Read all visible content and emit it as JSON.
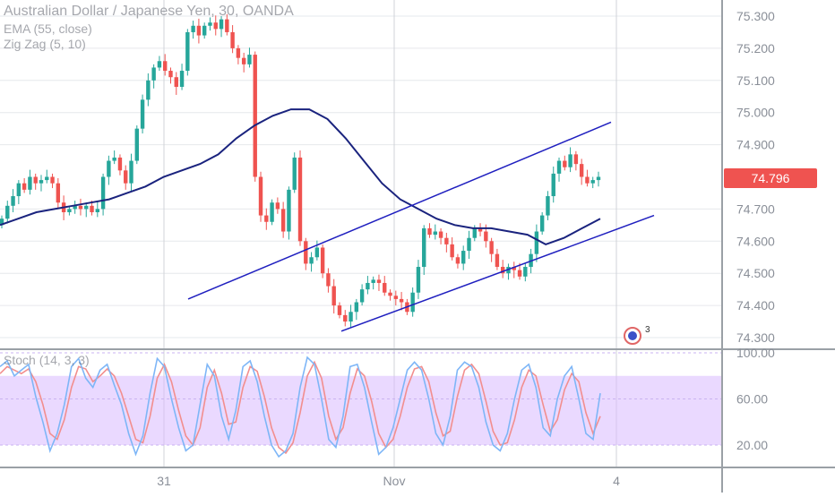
{
  "chart_data": [
    {
      "type": "candlestick",
      "title": "Australian Dollar / Japanese Yen, 30, OANDA",
      "indicators": [
        "EMA (55, close)",
        "Zig Zag (5, 10)"
      ],
      "x_ticks": [
        "31",
        "Nov",
        "4"
      ],
      "y_ticks": [
        "75.300",
        "75.200",
        "75.100",
        "75.000",
        "74.900",
        "74.796",
        "74.700",
        "74.600",
        "74.500",
        "74.400",
        "74.300"
      ],
      "ylim": [
        74.28,
        75.33
      ],
      "last_price": "74.796",
      "last_price_color": "#ef5350",
      "up_color": "#26a69a",
      "down_color": "#ef5350",
      "ema_color": "#1a237e",
      "channel_color": "#1f1fbf",
      "closes": [
        74.67,
        74.71,
        74.74,
        74.78,
        74.76,
        74.8,
        74.78,
        74.79,
        74.8,
        74.78,
        74.72,
        74.69,
        74.7,
        74.71,
        74.7,
        74.71,
        74.69,
        74.7,
        74.8,
        74.85,
        74.86,
        74.82,
        74.78,
        74.85,
        74.95,
        75.04,
        75.1,
        75.14,
        75.16,
        75.13,
        75.11,
        75.08,
        75.13,
        75.25,
        75.27,
        75.24,
        75.27,
        75.28,
        75.26,
        75.29,
        75.25,
        75.2,
        75.17,
        75.15,
        75.18,
        74.8,
        74.68,
        74.66,
        74.72,
        74.7,
        74.63,
        74.76,
        74.86,
        74.6,
        74.53,
        74.55,
        74.58,
        74.5,
        74.46,
        74.4,
        74.37,
        74.35,
        74.38,
        74.41,
        74.45,
        74.47,
        74.48,
        74.47,
        74.44,
        74.43,
        74.42,
        74.41,
        74.38,
        74.44,
        74.52,
        74.64,
        74.62,
        74.63,
        74.61,
        74.59,
        74.55,
        74.53,
        74.57,
        74.61,
        74.64,
        74.63,
        74.6,
        74.56,
        74.52,
        74.5,
        74.52,
        74.51,
        74.49,
        74.52,
        74.56,
        74.63,
        74.68,
        74.74,
        74.81,
        74.85,
        74.83,
        74.87,
        74.84,
        74.8,
        74.78,
        74.79,
        74.8
      ],
      "ema": [
        74.65,
        74.67,
        74.69,
        74.7,
        74.71,
        74.72,
        74.73,
        74.75,
        74.77,
        74.8,
        74.82,
        74.84,
        74.87,
        74.92,
        74.96,
        74.99,
        75.01,
        75.01,
        74.98,
        74.92,
        74.85,
        74.78,
        74.73,
        74.7,
        74.67,
        74.65,
        74.64,
        74.64,
        74.63,
        74.62,
        74.59,
        74.61,
        74.64,
        74.67
      ],
      "channel": {
        "upper": [
          [
            74.42,
            74.97
          ]
        ],
        "lower": [
          [
            74.32,
            74.68
          ]
        ]
      },
      "zigzag_label": "3"
    },
    {
      "type": "line",
      "title": "Stoch (14, 3, 3)",
      "y_ticks": [
        "100.00",
        "60.00",
        "20.00"
      ],
      "ylim": [
        0,
        100
      ],
      "band": [
        20,
        80
      ],
      "band_color": "#d8b9ff",
      "k_color": "#7eb6f7",
      "d_color": "#f28e8e",
      "k": [
        88,
        93,
        80,
        85,
        90,
        62,
        40,
        15,
        30,
        55,
        88,
        95,
        78,
        70,
        85,
        90,
        72,
        55,
        30,
        12,
        28,
        65,
        95,
        88,
        60,
        35,
        15,
        20,
        55,
        90,
        80,
        45,
        25,
        50,
        88,
        93,
        75,
        45,
        20,
        10,
        15,
        30,
        70,
        96,
        90,
        60,
        25,
        18,
        45,
        88,
        90,
        70,
        40,
        12,
        18,
        35,
        60,
        85,
        92,
        85,
        60,
        30,
        20,
        45,
        85,
        92,
        88,
        70,
        40,
        20,
        15,
        30,
        60,
        85,
        90,
        70,
        35,
        28,
        60,
        80,
        88,
        60,
        30,
        25,
        65
      ],
      "d": [
        82,
        88,
        85,
        82,
        86,
        75,
        55,
        30,
        25,
        42,
        70,
        88,
        86,
        75,
        80,
        86,
        80,
        65,
        45,
        25,
        22,
        45,
        78,
        90,
        75,
        50,
        28,
        20,
        35,
        70,
        85,
        65,
        38,
        40,
        70,
        88,
        84,
        62,
        35,
        18,
        13,
        22,
        48,
        80,
        92,
        78,
        45,
        25,
        35,
        65,
        86,
        80,
        58,
        30,
        18,
        25,
        45,
        70,
        86,
        88,
        75,
        48,
        28,
        32,
        62,
        85,
        90,
        82,
        58,
        32,
        20,
        22,
        42,
        70,
        85,
        80,
        55,
        32,
        42,
        68,
        82,
        75,
        48,
        30,
        45
      ]
    }
  ]
}
